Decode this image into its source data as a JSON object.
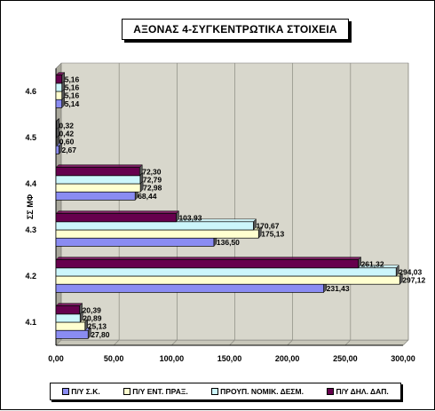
{
  "title": "ΑΞΟΝΑΣ 4-ΣΥΓΚΕΝΤΡΩΤΙΚΑ ΣΤΟΙΧΕΙΑ",
  "colors": {
    "series_0": "#8a8cf2",
    "series_1": "#ffffd0",
    "series_2": "#ccf6fb",
    "series_3": "#66004d",
    "plot_bg": "#d8d7cc"
  },
  "chart_data": {
    "type": "bar",
    "orientation": "horizontal",
    "title": "ΑΞΟΝΑΣ 4-ΣΥΓΚΕΝΤΡΩΤΙΚΑ ΣΤΟΙΧΕΙΑ",
    "ylabel": "ΣΣ ΜΦ",
    "xlabel": "",
    "categories": [
      "4.1",
      "4.2",
      "4.3",
      "4.4",
      "4.5",
      "4.6"
    ],
    "series": [
      {
        "name": "Π/Υ Σ.Κ.",
        "values": [
          27.8,
          231.43,
          136.5,
          68.44,
          2.67,
          5.14
        ],
        "labels": [
          "27,80",
          "231,43",
          "136,50",
          "68,44",
          "2,67",
          "5,14"
        ]
      },
      {
        "name": "Π/Υ ΕΝΤ. ΠΡΑΞ.",
        "values": [
          25.13,
          297.12,
          175.13,
          72.98,
          0.6,
          5.16
        ],
        "labels": [
          "25,13",
          "297,12",
          "175,13",
          "72,98",
          "0,60",
          "5,16"
        ]
      },
      {
        "name": "ΠΡΟΥΠ. ΝΟΜΙΚ. ΔΕΣΜ.",
        "values": [
          20.89,
          294.03,
          170.67,
          72.79,
          0.42,
          5.16
        ],
        "labels": [
          "20,89",
          "294,03",
          "170,67",
          "72,79",
          "0,42",
          "5,16"
        ]
      },
      {
        "name": "Π/Υ ΔΗΛ. ΔΑΠ.",
        "values": [
          20.39,
          261.32,
          103.93,
          72.3,
          0.32,
          5.16
        ],
        "labels": [
          "20,39",
          "261,32",
          "103,93",
          "72,30",
          "0,32",
          "5,16"
        ]
      }
    ],
    "xlim": [
      0,
      300
    ],
    "xticks": [
      0,
      50,
      100,
      150,
      200,
      250,
      300
    ],
    "xtick_labels": [
      "0,00",
      "50,00",
      "100,00",
      "150,00",
      "200,00",
      "250,00",
      "300,00"
    ],
    "grid": true,
    "legend_position": "bottom"
  }
}
